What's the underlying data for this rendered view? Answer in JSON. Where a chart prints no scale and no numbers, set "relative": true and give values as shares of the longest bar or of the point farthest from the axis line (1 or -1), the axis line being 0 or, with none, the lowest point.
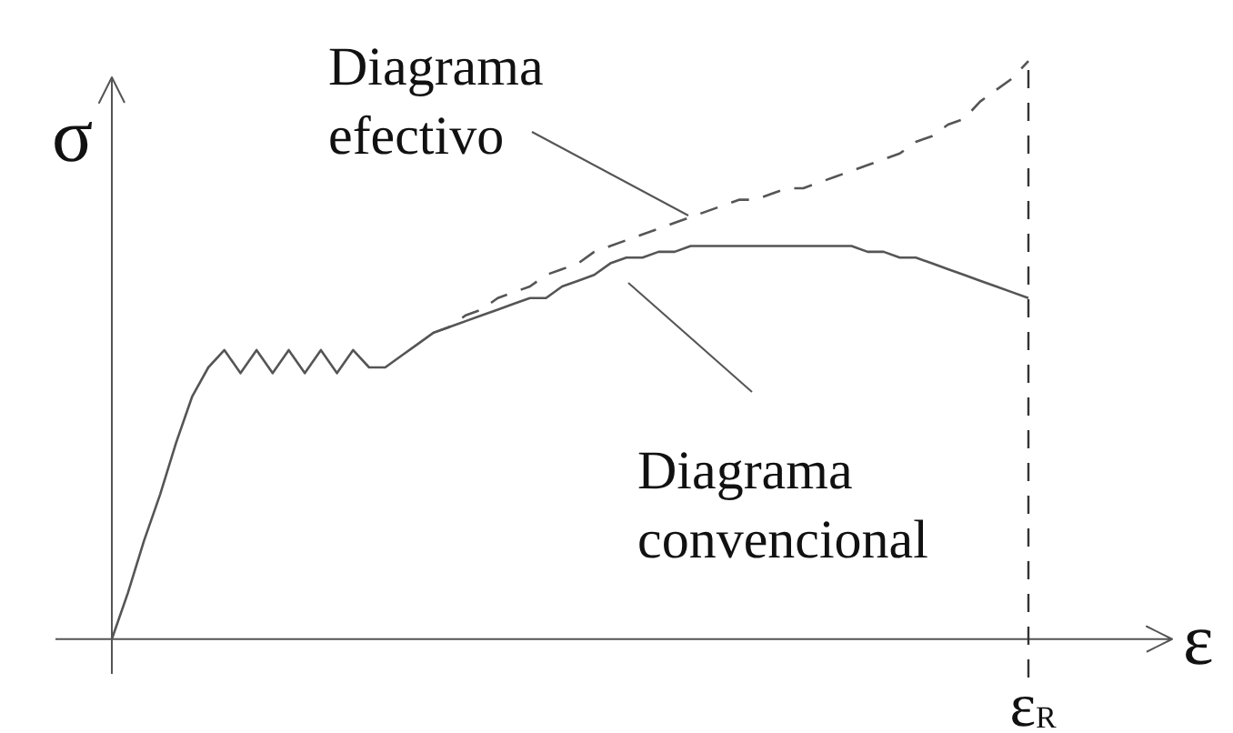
{
  "chart_data": {
    "type": "line",
    "relative": true,
    "xlabel": "ε",
    "ylabel": "σ",
    "marker": "none",
    "categories": [
      null,
      null,
      null,
      null,
      null,
      null,
      null,
      null,
      null,
      null,
      null,
      null,
      null,
      null,
      null,
      null,
      null,
      null,
      null,
      null,
      null,
      null,
      null,
      null,
      null,
      null,
      null,
      null,
      null,
      null,
      null,
      null,
      null,
      null,
      null,
      null,
      null,
      null,
      null,
      null,
      null,
      null,
      null,
      null,
      null,
      null,
      null,
      null,
      null,
      null,
      null,
      null,
      null,
      null,
      null,
      null,
      null,
      null
    ],
    "series": [
      {
        "color": "#555555",
        "line_style": "solid",
        "values": [
          0,
          0.08,
          0.17,
          0.25,
          0.34,
          0.42,
          0.47,
          0.5,
          0.46,
          0.5,
          0.46,
          0.5,
          0.46,
          0.5,
          0.46,
          0.5,
          0.47,
          0.47,
          0.49,
          0.51,
          0.53,
          0.54,
          0.55,
          0.56,
          0.57,
          0.58,
          0.59,
          0.59,
          0.61,
          0.62,
          0.63,
          0.65,
          0.66,
          0.66,
          0.67,
          0.67,
          0.68,
          0.68,
          0.68,
          0.68,
          0.68,
          0.68,
          0.68,
          0.68,
          0.68,
          0.68,
          0.68,
          0.67,
          0.67,
          0.66,
          0.66,
          0.65,
          0.64,
          0.63,
          0.62,
          0.61,
          0.6,
          0.59
        ]
      },
      {
        "color": "#555555",
        "line_style": "dashed",
        "values": [
          null,
          null,
          null,
          null,
          null,
          null,
          null,
          null,
          null,
          null,
          null,
          null,
          null,
          null,
          null,
          null,
          null,
          null,
          null,
          null,
          0.53,
          0.54,
          0.56,
          0.57,
          0.59,
          0.6,
          0.61,
          0.63,
          0.64,
          0.65,
          0.67,
          0.68,
          0.69,
          0.7,
          0.71,
          0.72,
          0.73,
          0.74,
          0.75,
          0.76,
          0.76,
          0.77,
          0.78,
          0.78,
          0.79,
          0.8,
          0.81,
          0.82,
          0.83,
          0.84,
          0.86,
          0.87,
          0.89,
          0.9,
          0.93,
          0.95,
          0.97,
          1
        ]
      }
    ],
    "annotations": [
      "Diagrama efectivo",
      "Diagrama convencional",
      "ε$_{R}$"
    ]
  }
}
